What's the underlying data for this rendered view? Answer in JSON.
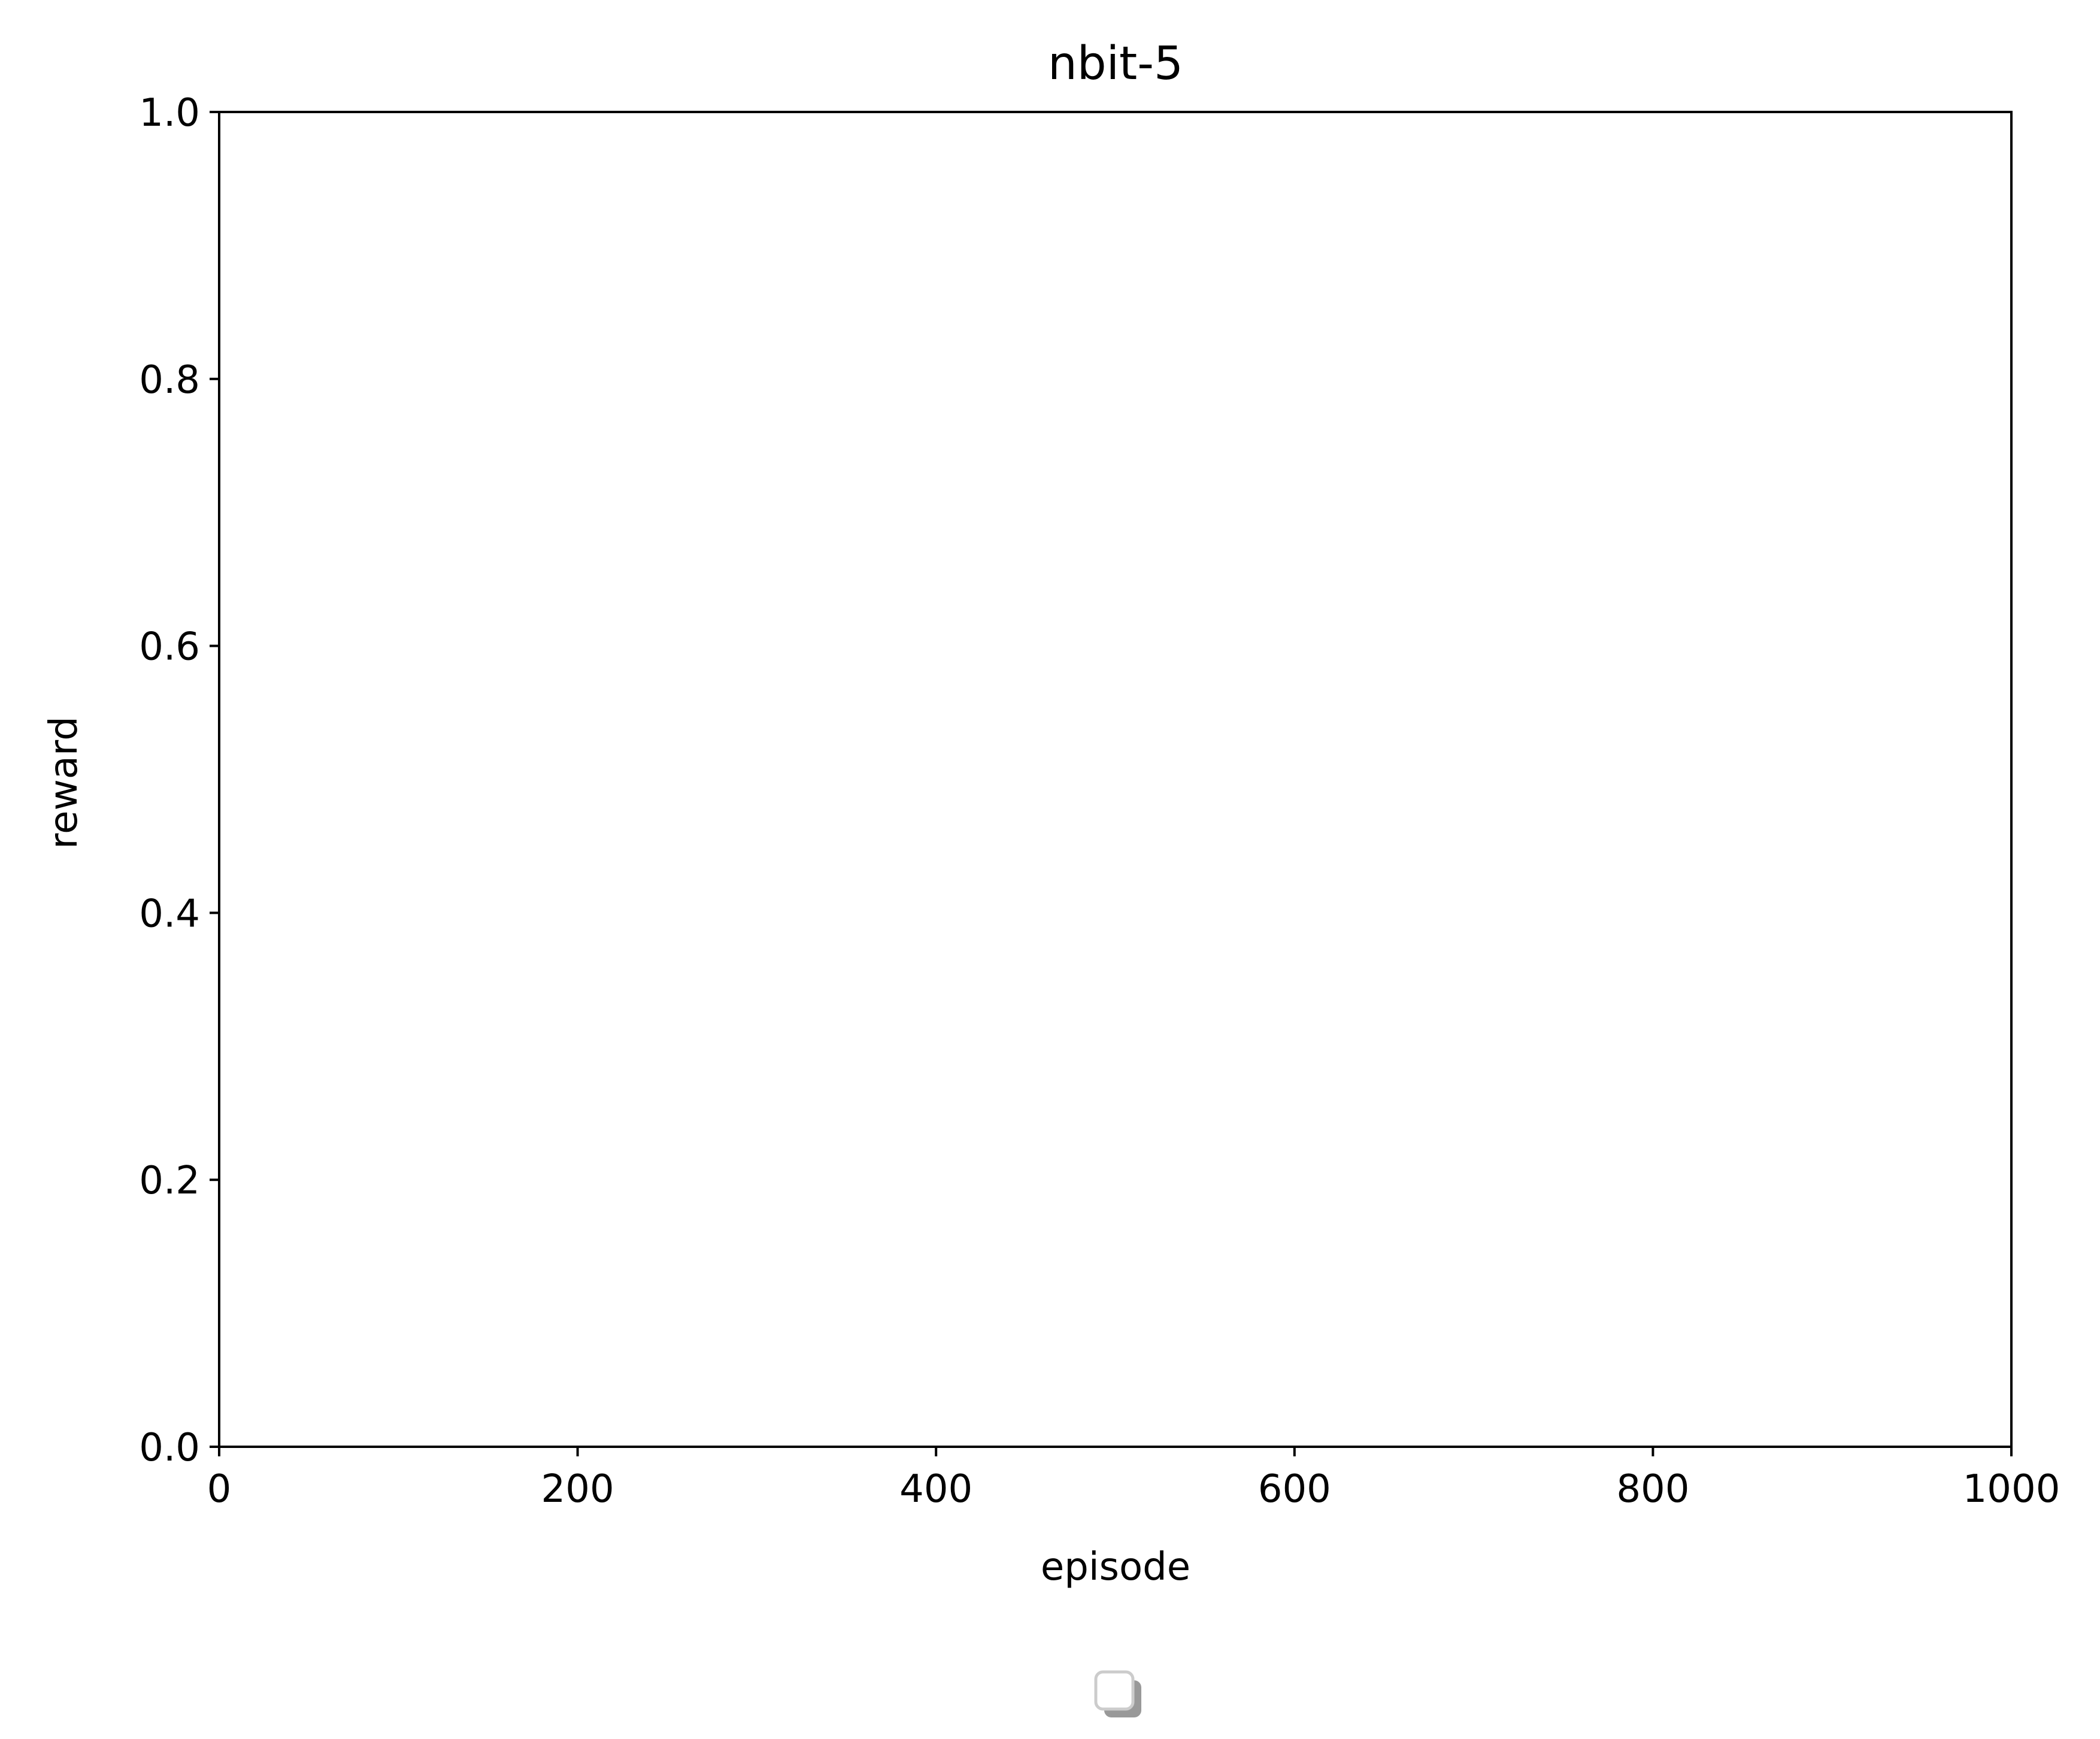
{
  "chart_data": {
    "type": "line",
    "title": "nbit-5",
    "xlabel": "episode",
    "ylabel": "reward",
    "xlim": [
      0,
      1000
    ],
    "ylim": [
      0.0,
      1.0
    ],
    "x_ticks": [
      0,
      200,
      400,
      600,
      800,
      1000
    ],
    "x_tick_labels": [
      "0",
      "200",
      "400",
      "600",
      "800",
      "1000"
    ],
    "y_ticks": [
      0.0,
      0.2,
      0.4,
      0.6,
      0.8,
      1.0
    ],
    "y_tick_labels": [
      "0.0",
      "0.2",
      "0.4",
      "0.6",
      "0.8",
      "1.0"
    ],
    "series": [],
    "grid": false,
    "legend": {
      "placement": "below the plot, centered",
      "entries": []
    },
    "colors": {
      "axes": "#000000",
      "legend_border": "#cccccc",
      "legend_shadow": "#999999",
      "background": "#ffffff"
    }
  }
}
